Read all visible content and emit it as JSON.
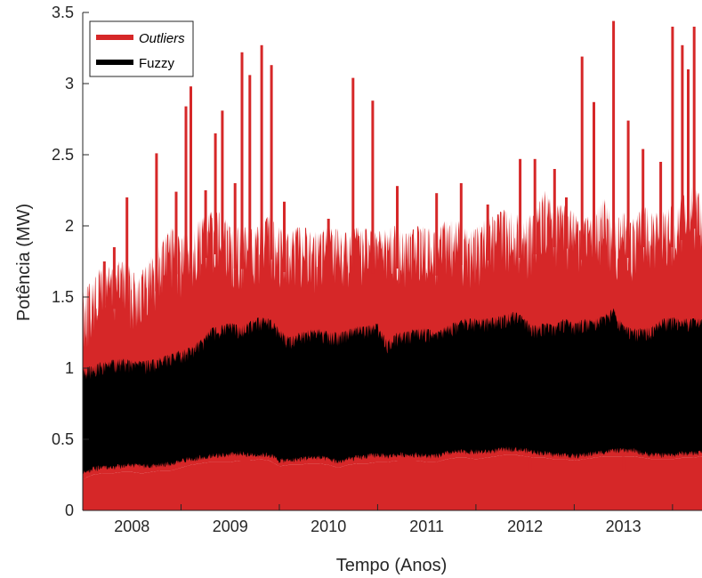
{
  "chart_data": {
    "type": "area",
    "xlabel": "Tempo (Anos)",
    "ylabel": "Potência (MW)",
    "xlim": [
      2007.5,
      2013.8
    ],
    "ylim": [
      0,
      3.5
    ],
    "yticks": [
      0,
      0.5,
      1,
      1.5,
      2,
      2.5,
      3,
      3.5
    ],
    "ytick_labels": [
      "0",
      "0.5",
      "1",
      "1.5",
      "2",
      "2.5",
      "3",
      "3.5"
    ],
    "xtick_labels": [
      {
        "label": "2008",
        "center": 2008.0
      },
      {
        "label": "2009",
        "center": 2009.0
      },
      {
        "label": "2010",
        "center": 2010.0
      },
      {
        "label": "2011",
        "center": 2011.0
      },
      {
        "label": "2012",
        "center": 2012.0
      },
      {
        "label": "2013",
        "center": 2013.0
      }
    ],
    "year_boundaries": [
      2008.5,
      2009.5,
      2010.5,
      2011.5,
      2012.5,
      2013.5
    ],
    "legend": {
      "position": "top-left"
    },
    "series": [
      {
        "name": "Outliers",
        "color": "#d62728",
        "envelope": {
          "x": [
            2007.5,
            2007.6,
            2007.7,
            2007.8,
            2007.9,
            2008.0,
            2008.1,
            2008.2,
            2008.3,
            2008.4,
            2008.5,
            2008.6,
            2008.7,
            2008.8,
            2008.9,
            2009.0,
            2009.1,
            2009.2,
            2009.3,
            2009.4,
            2009.5,
            2009.6,
            2009.7,
            2009.8,
            2009.9,
            2010.0,
            2010.1,
            2010.2,
            2010.3,
            2010.4,
            2010.5,
            2010.6,
            2010.7,
            2010.8,
            2010.9,
            2011.0,
            2011.1,
            2011.2,
            2011.3,
            2011.4,
            2011.5,
            2011.6,
            2011.7,
            2011.8,
            2011.9,
            2012.0,
            2012.1,
            2012.2,
            2012.3,
            2012.4,
            2012.5,
            2012.6,
            2012.7,
            2012.8,
            2012.9,
            2013.0,
            2013.1,
            2013.2,
            2013.3,
            2013.4,
            2013.5,
            2013.6,
            2013.7,
            2013.8
          ],
          "upper": [
            1.58,
            1.6,
            1.75,
            1.7,
            1.78,
            1.7,
            1.68,
            1.8,
            1.88,
            2.0,
            1.92,
            2.0,
            2.05,
            2.1,
            2.1,
            2.0,
            2.0,
            1.98,
            2.0,
            2.08,
            2.0,
            1.95,
            2.0,
            1.98,
            1.95,
            2.0,
            1.98,
            1.95,
            2.0,
            1.98,
            1.95,
            2.0,
            2.0,
            1.95,
            2.0,
            2.0,
            1.95,
            2.05,
            2.05,
            2.0,
            2.0,
            2.05,
            2.08,
            2.12,
            2.1,
            2.05,
            2.1,
            2.25,
            2.15,
            2.15,
            2.1,
            2.05,
            2.1,
            2.2,
            2.05,
            2.1,
            2.05,
            2.15,
            2.1,
            2.1,
            2.15,
            2.2,
            2.3,
            2.2
          ],
          "lower": [
            0.22,
            0.25,
            0.26,
            0.26,
            0.27,
            0.27,
            0.26,
            0.27,
            0.28,
            0.28,
            0.3,
            0.32,
            0.33,
            0.34,
            0.34,
            0.34,
            0.35,
            0.35,
            0.36,
            0.35,
            0.31,
            0.32,
            0.32,
            0.33,
            0.33,
            0.32,
            0.3,
            0.32,
            0.33,
            0.33,
            0.34,
            0.34,
            0.35,
            0.35,
            0.35,
            0.34,
            0.34,
            0.36,
            0.37,
            0.37,
            0.36,
            0.37,
            0.38,
            0.39,
            0.39,
            0.38,
            0.37,
            0.37,
            0.36,
            0.36,
            0.35,
            0.36,
            0.37,
            0.38,
            0.38,
            0.38,
            0.38,
            0.37,
            0.36,
            0.36,
            0.36,
            0.37,
            0.37,
            0.38
          ]
        },
        "peaks": [
          {
            "x": 2007.72,
            "y": 1.75
          },
          {
            "x": 2007.82,
            "y": 1.85
          },
          {
            "x": 2007.95,
            "y": 2.2
          },
          {
            "x": 2008.25,
            "y": 2.51
          },
          {
            "x": 2008.45,
            "y": 2.24
          },
          {
            "x": 2008.55,
            "y": 2.84
          },
          {
            "x": 2008.6,
            "y": 2.98
          },
          {
            "x": 2008.75,
            "y": 2.25
          },
          {
            "x": 2008.85,
            "y": 2.65
          },
          {
            "x": 2008.92,
            "y": 2.81
          },
          {
            "x": 2009.05,
            "y": 2.3
          },
          {
            "x": 2009.12,
            "y": 3.22
          },
          {
            "x": 2009.2,
            "y": 3.06
          },
          {
            "x": 2009.32,
            "y": 3.27
          },
          {
            "x": 2009.42,
            "y": 3.13
          },
          {
            "x": 2009.55,
            "y": 2.17
          },
          {
            "x": 2010.0,
            "y": 2.05
          },
          {
            "x": 2010.25,
            "y": 3.04
          },
          {
            "x": 2010.45,
            "y": 2.88
          },
          {
            "x": 2010.7,
            "y": 2.28
          },
          {
            "x": 2011.1,
            "y": 2.23
          },
          {
            "x": 2011.35,
            "y": 2.3
          },
          {
            "x": 2011.62,
            "y": 2.15
          },
          {
            "x": 2011.95,
            "y": 2.47
          },
          {
            "x": 2012.1,
            "y": 2.47
          },
          {
            "x": 2012.3,
            "y": 2.4
          },
          {
            "x": 2012.42,
            "y": 2.2
          },
          {
            "x": 2012.58,
            "y": 3.19
          },
          {
            "x": 2012.7,
            "y": 2.87
          },
          {
            "x": 2012.9,
            "y": 3.44
          },
          {
            "x": 2013.05,
            "y": 2.74
          },
          {
            "x": 2013.2,
            "y": 2.54
          },
          {
            "x": 2013.38,
            "y": 2.45
          },
          {
            "x": 2013.5,
            "y": 3.4
          },
          {
            "x": 2013.6,
            "y": 3.27
          },
          {
            "x": 2013.66,
            "y": 3.1
          },
          {
            "x": 2013.72,
            "y": 3.4
          }
        ],
        "dips": [
          {
            "x": 2007.53,
            "y": 0.21
          },
          {
            "x": 2012.05,
            "y": 0.28
          },
          {
            "x": 2013.0,
            "y": 0.28
          }
        ]
      },
      {
        "name": "Fuzzy",
        "color": "#000000",
        "envelope": {
          "x": [
            2007.5,
            2007.6,
            2007.7,
            2007.8,
            2007.9,
            2008.0,
            2008.1,
            2008.2,
            2008.3,
            2008.4,
            2008.5,
            2008.6,
            2008.7,
            2008.8,
            2008.9,
            2009.0,
            2009.1,
            2009.2,
            2009.3,
            2009.4,
            2009.5,
            2009.6,
            2009.7,
            2009.8,
            2009.9,
            2010.0,
            2010.1,
            2010.2,
            2010.3,
            2010.4,
            2010.5,
            2010.6,
            2010.7,
            2010.8,
            2010.9,
            2011.0,
            2011.1,
            2011.2,
            2011.3,
            2011.4,
            2011.5,
            2011.6,
            2011.7,
            2011.8,
            2011.9,
            2012.0,
            2012.1,
            2012.2,
            2012.3,
            2012.4,
            2012.5,
            2012.6,
            2012.7,
            2012.8,
            2012.9,
            2013.0,
            2013.1,
            2013.2,
            2013.3,
            2013.4,
            2013.5,
            2013.6,
            2013.7,
            2013.8
          ],
          "upper": [
            1.0,
            1.02,
            1.05,
            1.06,
            1.07,
            1.06,
            1.05,
            1.06,
            1.08,
            1.1,
            1.13,
            1.15,
            1.2,
            1.28,
            1.3,
            1.32,
            1.3,
            1.33,
            1.36,
            1.35,
            1.28,
            1.22,
            1.25,
            1.27,
            1.28,
            1.26,
            1.25,
            1.27,
            1.3,
            1.3,
            1.32,
            1.2,
            1.25,
            1.26,
            1.28,
            1.28,
            1.25,
            1.3,
            1.33,
            1.35,
            1.35,
            1.35,
            1.36,
            1.38,
            1.4,
            1.35,
            1.3,
            1.32,
            1.3,
            1.35,
            1.32,
            1.35,
            1.34,
            1.38,
            1.42,
            1.3,
            1.28,
            1.28,
            1.3,
            1.35,
            1.36,
            1.35,
            1.35,
            1.35
          ],
          "lower": [
            0.24,
            0.27,
            0.28,
            0.28,
            0.29,
            0.3,
            0.29,
            0.29,
            0.3,
            0.31,
            0.33,
            0.34,
            0.35,
            0.36,
            0.37,
            0.37,
            0.38,
            0.37,
            0.37,
            0.37,
            0.33,
            0.33,
            0.34,
            0.35,
            0.35,
            0.34,
            0.32,
            0.34,
            0.35,
            0.36,
            0.37,
            0.36,
            0.37,
            0.37,
            0.37,
            0.36,
            0.36,
            0.38,
            0.39,
            0.39,
            0.39,
            0.39,
            0.4,
            0.41,
            0.41,
            0.4,
            0.39,
            0.38,
            0.37,
            0.37,
            0.36,
            0.37,
            0.38,
            0.39,
            0.4,
            0.4,
            0.4,
            0.38,
            0.37,
            0.37,
            0.37,
            0.38,
            0.38,
            0.39
          ]
        }
      }
    ]
  },
  "colors": {
    "outliers": "#d62728",
    "fuzzy": "#000000",
    "axis": "#262626"
  }
}
